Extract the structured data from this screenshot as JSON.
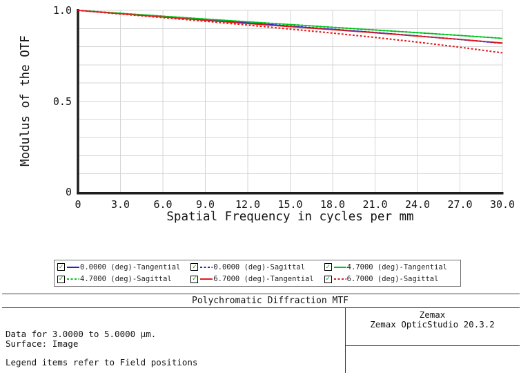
{
  "chart_data": {
    "type": "line",
    "title": "Polychromatic Diffraction MTF",
    "xlabel": "Spatial Frequency in cycles per mm",
    "ylabel": "Modulus of the OTF",
    "xlim": [
      0,
      30
    ],
    "ylim": [
      0,
      1
    ],
    "grid": true,
    "grid_step_x": 3,
    "grid_step_y": 0.1,
    "legend_position": "bottom",
    "x_ticks": [
      {
        "value": 0,
        "label": "0"
      },
      {
        "value": 3,
        "label": "3.0"
      },
      {
        "value": 6,
        "label": "6.0"
      },
      {
        "value": 9,
        "label": "9.0"
      },
      {
        "value": 12,
        "label": "12.0"
      },
      {
        "value": 15,
        "label": "15.0"
      },
      {
        "value": 18,
        "label": "18.0"
      },
      {
        "value": 21,
        "label": "21.0"
      },
      {
        "value": 24,
        "label": "24.0"
      },
      {
        "value": 27,
        "label": "27.0"
      },
      {
        "value": 30,
        "label": "30.0"
      }
    ],
    "y_ticks": [
      {
        "value": 1.0,
        "label": "1.0"
      },
      {
        "value": 0.5,
        "label": "0.5"
      },
      {
        "value": 0,
        "label": "0"
      }
    ],
    "x": [
      0,
      3,
      6,
      9,
      12,
      15,
      18,
      21,
      24,
      27,
      30
    ],
    "series": [
      {
        "name": "0.0000 (deg)-Tangential",
        "color": "#2222cc",
        "style": "solid",
        "checked": true,
        "values": [
          1.0,
          0.983,
          0.966,
          0.948,
          0.931,
          0.913,
          0.896,
          0.878,
          0.859,
          0.84,
          0.819
        ]
      },
      {
        "name": "0.0000 (deg)-Sagittal",
        "color": "#2222cc",
        "style": "dotted",
        "checked": true,
        "values": [
          1.0,
          0.983,
          0.966,
          0.948,
          0.931,
          0.913,
          0.896,
          0.878,
          0.859,
          0.84,
          0.819
        ]
      },
      {
        "name": "4.7000 (deg)-Tangential",
        "color": "#00c21f",
        "style": "solid",
        "checked": true,
        "values": [
          1.0,
          0.984,
          0.968,
          0.952,
          0.937,
          0.922,
          0.907,
          0.892,
          0.877,
          0.862,
          0.846
        ]
      },
      {
        "name": "4.7000 (deg)-Sagittal",
        "color": "#00c21f",
        "style": "dotted",
        "checked": true,
        "values": [
          1.0,
          0.984,
          0.968,
          0.952,
          0.937,
          0.922,
          0.907,
          0.892,
          0.877,
          0.862,
          0.846
        ]
      },
      {
        "name": "6.7000 (deg)-Tangential",
        "color": "#e31a1a",
        "style": "solid",
        "checked": true,
        "values": [
          1.0,
          0.981,
          0.963,
          0.945,
          0.927,
          0.91,
          0.893,
          0.876,
          0.858,
          0.84,
          0.821
        ]
      },
      {
        "name": "6.7000 (deg)-Sagittal",
        "color": "#e31a1a",
        "style": "dotted",
        "checked": true,
        "values": [
          1.0,
          0.98,
          0.96,
          0.94,
          0.919,
          0.897,
          0.875,
          0.851,
          0.825,
          0.797,
          0.766
        ]
      }
    ],
    "colors": {
      "grid": "#d4d4d4",
      "axis": "#1e1e1e",
      "checkbox_check": "#00a000"
    }
  },
  "footer": {
    "left_lines": [
      "Data for 3.0000 to 5.0000 µm.",
      "Surface: Image",
      "Legend items refer to Field positions"
    ],
    "right_lines": [
      "Zemax",
      "Zemax OpticStudio 20.3.2"
    ]
  }
}
